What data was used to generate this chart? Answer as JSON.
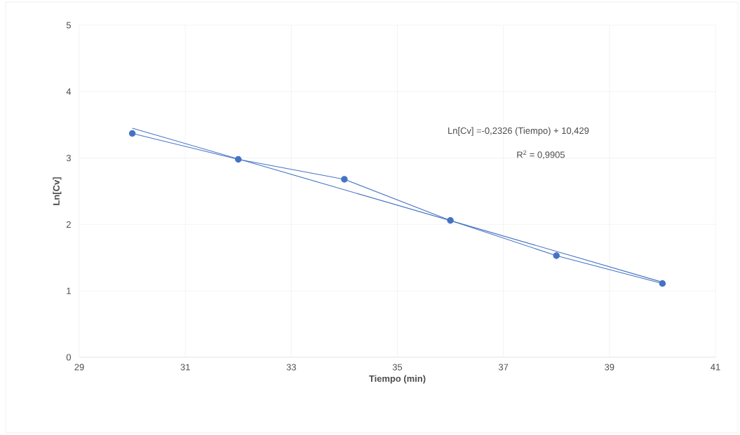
{
  "chart_data": {
    "type": "line",
    "xlabel": "Tiempo (min)",
    "ylabel": "Ln[Cv]",
    "annotations": [
      "Ln[Cv] =-0,2326 (Tiempo) + 10,429",
      "R$^{2}$ = 0,9905"
    ],
    "x": [
      30,
      32,
      34,
      36,
      38,
      40
    ],
    "series": [
      {
        "color": "#4472c4",
        "values": [
          3.37,
          2.98,
          2.68,
          2.06,
          1.53,
          1.11
        ],
        "marker": "circle"
      },
      {
        "type": "line",
        "color": "#4472c4",
        "x": [
          30,
          40
        ],
        "values": [
          3.45,
          1.13
        ],
        "marker": "none"
      }
    ],
    "xlim": [
      29,
      41
    ],
    "xticks": [
      29,
      31,
      33,
      35,
      37,
      39,
      41
    ],
    "ylim": [
      0,
      5
    ],
    "yticks": [
      0,
      1,
      2,
      3,
      4,
      5
    ],
    "grid": true,
    "line_style": "solid"
  }
}
